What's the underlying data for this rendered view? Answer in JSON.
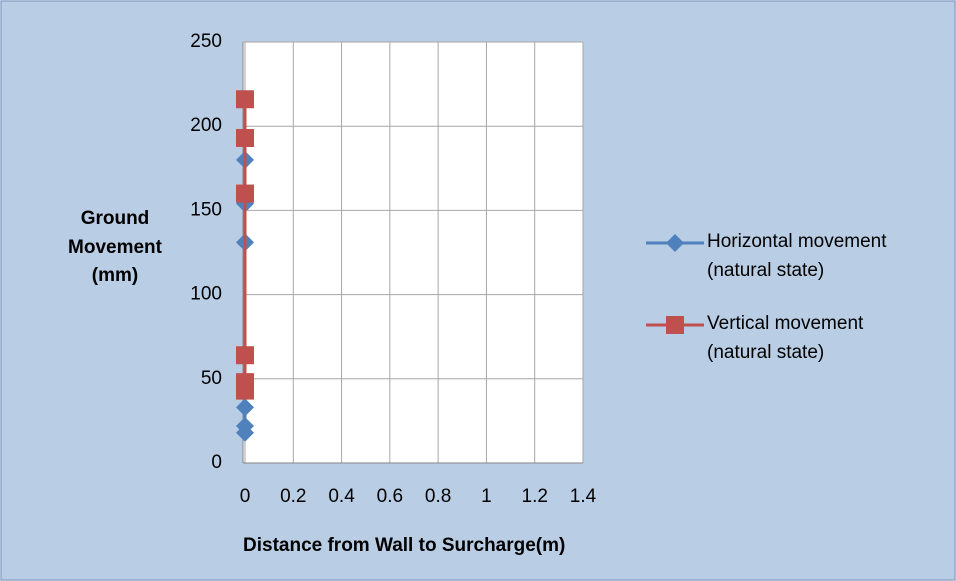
{
  "chart_data": {
    "type": "scatter",
    "xlabel": "Distance from Wall to Surcharge(m)",
    "ylabel": "Ground Movement (mm)",
    "xlim": [
      0,
      1.4
    ],
    "xticks": [
      0,
      0.2,
      0.4,
      0.6,
      0.8,
      1,
      1.2,
      1.4
    ],
    "ylim": [
      0,
      250
    ],
    "yticks": [
      0,
      50,
      100,
      150,
      200,
      250
    ],
    "grid": true,
    "legend": "right",
    "series": [
      {
        "name": "Horizontal movement (natural state)",
        "color": "#4f81bd",
        "marker": "diamond",
        "x": [
          0,
          0,
          0,
          0,
          0,
          0
        ],
        "values": [
          180,
          154,
          131,
          33,
          22,
          18
        ]
      },
      {
        "name": "Vertical movement (natural state)",
        "color": "#c0504d",
        "marker": "square",
        "x": [
          0,
          0,
          0,
          0,
          0,
          0
        ],
        "values": [
          216,
          193,
          160,
          64,
          48,
          43
        ]
      }
    ]
  }
}
